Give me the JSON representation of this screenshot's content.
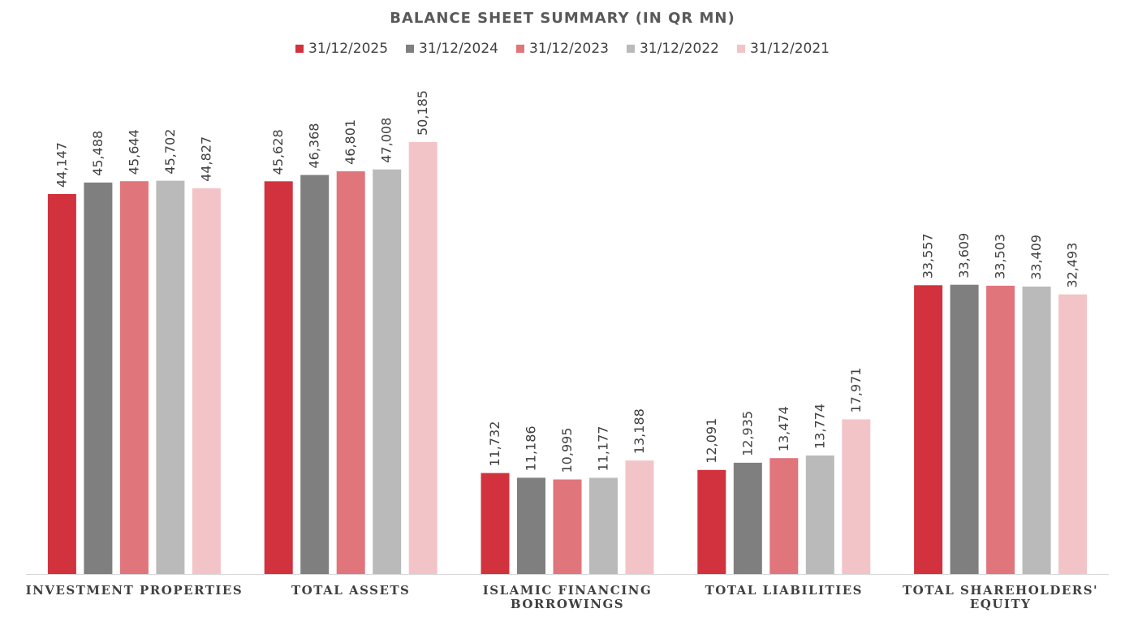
{
  "chart_data": {
    "type": "bar",
    "title": "BALANCE SHEET SUMMARY (IN QR MN)",
    "categories": [
      [
        "INVESTMENT PROPERTIES"
      ],
      [
        "TOTAL ASSETS"
      ],
      [
        "ISLAMIC FINANCING",
        "BORROWINGS"
      ],
      [
        "TOTAL LIABILITIES"
      ],
      [
        "TOTAL SHAREHOLDERS'",
        "EQUITY"
      ]
    ],
    "series": [
      {
        "name": "31/12/2025",
        "color": "#d1323d",
        "values": [
          44147,
          45628,
          11732,
          12091,
          33557
        ]
      },
      {
        "name": "31/12/2024",
        "color": "#7f7f7f",
        "values": [
          45488,
          46368,
          11186,
          12935,
          33609
        ]
      },
      {
        "name": "31/12/2023",
        "color": "#e0757b",
        "values": [
          45644,
          46801,
          10995,
          13474,
          33503
        ]
      },
      {
        "name": "31/12/2022",
        "color": "#bababa",
        "values": [
          45702,
          47008,
          11177,
          13774,
          33409
        ]
      },
      {
        "name": "31/12/2021",
        "color": "#f2c4c7",
        "values": [
          44827,
          50185,
          13188,
          17971,
          32493
        ]
      }
    ],
    "ylim": [
      0,
      55000
    ],
    "grid": false,
    "legend": "top-center",
    "data_labels": "rotated-vertical"
  }
}
